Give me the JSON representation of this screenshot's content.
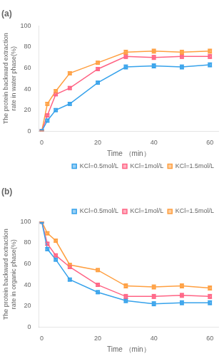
{
  "chart_data": [
    {
      "type": "line",
      "title": "(a)",
      "x_label": "Time （min）",
      "y_label": "The protein backward extraction\nrate in water phase(%)",
      "x": [
        0,
        2,
        5,
        10,
        20,
        30,
        40,
        50,
        60
      ],
      "series": [
        {
          "name": "KCl=0.5mol/L",
          "values": [
            0,
            10,
            20,
            26,
            46,
            61,
            62,
            61,
            63
          ],
          "yerr": [
            0,
            1.5,
            1.5,
            1.5,
            1.5,
            2.0,
            2.0,
            2.0,
            2.0
          ],
          "marker": "square",
          "line_style": "solid"
        },
        {
          "name": "KCl=1mol/L",
          "values": [
            0,
            15,
            35,
            41,
            59,
            71,
            70,
            71,
            71
          ],
          "yerr": [
            0,
            1.5,
            1.5,
            1.5,
            1.5,
            2.0,
            2.0,
            2.0,
            2.0
          ],
          "marker": "square",
          "line_style": "solid"
        },
        {
          "name": "KCl=1.5mol/L",
          "values": [
            0,
            26,
            38,
            55,
            65,
            75,
            76,
            75,
            76
          ],
          "yerr": [
            0,
            1.5,
            1.5,
            1.5,
            1.5,
            2.0,
            2.0,
            2.0,
            2.0
          ],
          "marker": "square",
          "line_style": "solid"
        }
      ],
      "xlim": [
        -1,
        63
      ],
      "xticks": [
        0,
        20,
        40,
        60
      ],
      "ylim": [
        0,
        100
      ],
      "yticks": [
        0,
        20,
        40,
        60,
        80,
        100
      ],
      "grid": false,
      "legend": "lower right"
    },
    {
      "type": "line",
      "title": "(b)",
      "x_label": "Time （min）",
      "y_label": "The protein backward extraction\nrate in organic phase(%)",
      "x": [
        0,
        2,
        5,
        10,
        20,
        30,
        40,
        50,
        60
      ],
      "series": [
        {
          "name": "KCl=0.5mol/L",
          "values": [
            100,
            74,
            64,
            45,
            33,
            25,
            22,
            23,
            23
          ],
          "yerr": [
            0,
            1.5,
            1.5,
            1.5,
            1.5,
            2.0,
            2.0,
            2.0,
            2.0
          ],
          "marker": "square",
          "line_style": "solid"
        },
        {
          "name": "KCl=1mol/L",
          "values": [
            100,
            79,
            68,
            57,
            40,
            29,
            29,
            30,
            29
          ],
          "yerr": [
            0,
            1.5,
            1.5,
            1.5,
            1.5,
            2.0,
            2.0,
            2.0,
            2.0
          ],
          "marker": "square",
          "line_style": "solid"
        },
        {
          "name": "KCl=1.5mol/L",
          "values": [
            100,
            89,
            82,
            59,
            54,
            39,
            38,
            39,
            37
          ],
          "yerr": [
            0,
            1.5,
            1.5,
            1.5,
            1.5,
            2.0,
            2.0,
            2.0,
            2.0
          ],
          "marker": "square",
          "line_style": "solid"
        }
      ],
      "xlim": [
        -1,
        63
      ],
      "xticks": [
        0,
        20,
        40,
        60
      ],
      "ylim": [
        0,
        100
      ],
      "yticks": [
        0,
        20,
        40,
        60,
        80,
        100
      ],
      "grid": false,
      "legend": "upper right"
    }
  ]
}
